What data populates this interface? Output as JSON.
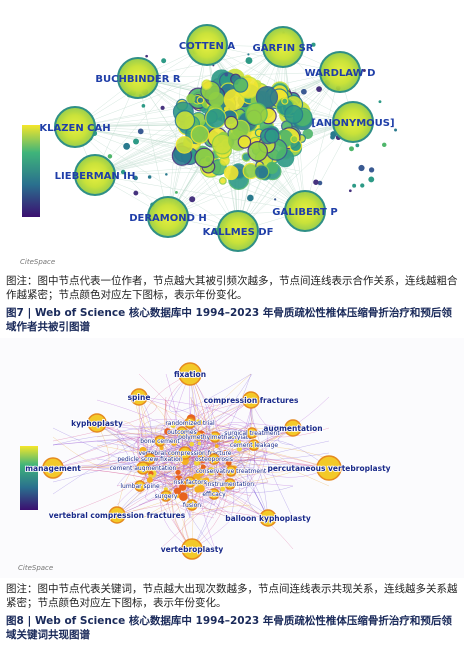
{
  "figure_7": {
    "logo": "CiteSpace",
    "nodes": [
      "COTTEN A",
      "GARFIN SR",
      "WARDLAW D",
      "BUCHBINDER R",
      "[ANONYMOUS]",
      "KLAZEN CAH",
      "LIEBERMAN IH",
      "GALIBERT P",
      "DERAMOND H",
      "KALLMES DF"
    ],
    "note": "图注：图中节点代表一位作者，节点越大其被引频次越多，节点间连线表示合作关系，连线越粗合作越紧密；节点颜色对应左下图标，表示年份变化。",
    "caption": "图7 | Web of Science 核心数据库中 1994–2023 年骨质疏松性椎体压缩骨折治疗和预后领域作者共被引图谱"
  },
  "figure_8": {
    "logo": "CiteSpace",
    "keywords": [
      "fixation",
      "spine",
      "compression fractures",
      "kyphoplasty",
      "augmentation",
      "randomized trial",
      "outcomes",
      "polymethylmethacrylate",
      "bone cement",
      "vertebral compression fracture",
      "pedicle screw fixation",
      "osteoporosis",
      "surgical treatment",
      "cement leakage",
      "conservative treatment",
      "cement augmentation",
      "risk factors",
      "instrumentation",
      "lumbar spine",
      "efficacy",
      "surgery",
      "fusion",
      "management",
      "percutaneous vertebroplasty",
      "vertebral compression fractures",
      "balloon kyphoplasty",
      "vertebroplasty"
    ],
    "note": "图注：图中节点代表关键词，节点越大出现次数越多，节点间连线表示共现关系，连线越多关系越紧密；节点颜色对应左下图标，表示年份变化。",
    "caption": "图8 | Web of Science 核心数据库中 1994–2023 年骨质疏松性椎体压缩骨折治疗和预后领域关键词共现图谱"
  }
}
